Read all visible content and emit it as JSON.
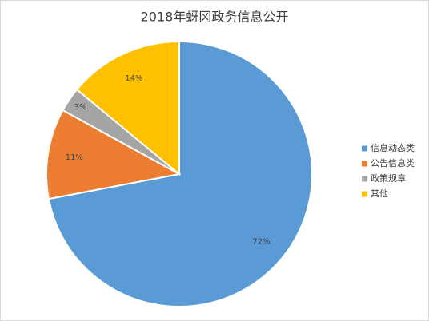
{
  "chart_data": {
    "type": "pie",
    "title": "2018年蚜冈政务信息公开",
    "categories": [
      "信息动态类",
      "公告信息类",
      "政策规章",
      "其他"
    ],
    "values": [
      72,
      11,
      3,
      14
    ],
    "value_labels": [
      "72%",
      "11%",
      "3%",
      "14%"
    ],
    "colors": [
      "#5b9bd5",
      "#ed7d31",
      "#a5a5a5",
      "#ffc000"
    ],
    "legend": "right"
  }
}
